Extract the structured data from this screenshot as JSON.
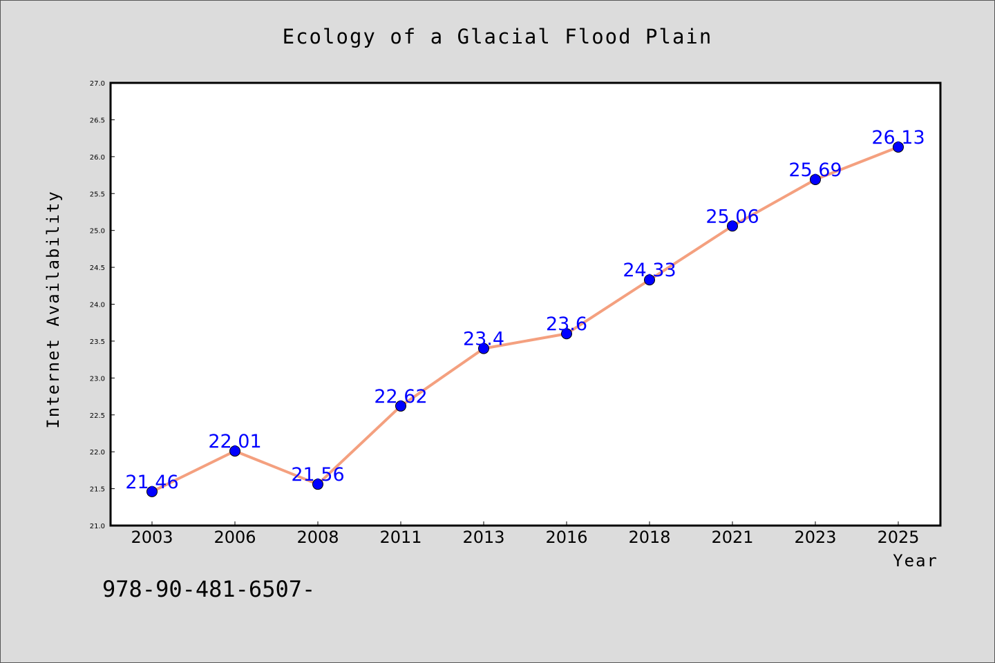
{
  "colors": {
    "background": "#dcdcdc",
    "plot_background": "#ffffff",
    "line": "#f4a07f",
    "marker": "#0000ff",
    "label": "#0000ff"
  },
  "footnote": "978-90-481-6507-",
  "chart_data": {
    "type": "line",
    "title": "Ecology of a Glacial Flood Plain",
    "xlabel": "Year",
    "ylabel": "Internet Availability",
    "categories": [
      "2003",
      "2006",
      "2008",
      "2011",
      "2013",
      "2016",
      "2018",
      "2021",
      "2023",
      "2025"
    ],
    "series": [
      {
        "values": [
          21.46,
          22.01,
          21.56,
          22.62,
          23.4,
          23.6,
          24.33,
          25.06,
          25.69,
          26.13
        ],
        "labels": [
          "21.46",
          "22.01",
          "21.56",
          "22.62",
          "23.4",
          "23.6",
          "24.33",
          "25.06",
          "25.69",
          "26.13"
        ]
      }
    ],
    "ylim": [
      21.0,
      27.0
    ],
    "yticks": [
      "21.0",
      "21.5",
      "22.0",
      "22.5",
      "23.0",
      "23.5",
      "24.0",
      "24.5",
      "25.0",
      "25.5",
      "26.0",
      "26.5",
      "27.0"
    ],
    "grid": false,
    "legend": "none"
  }
}
